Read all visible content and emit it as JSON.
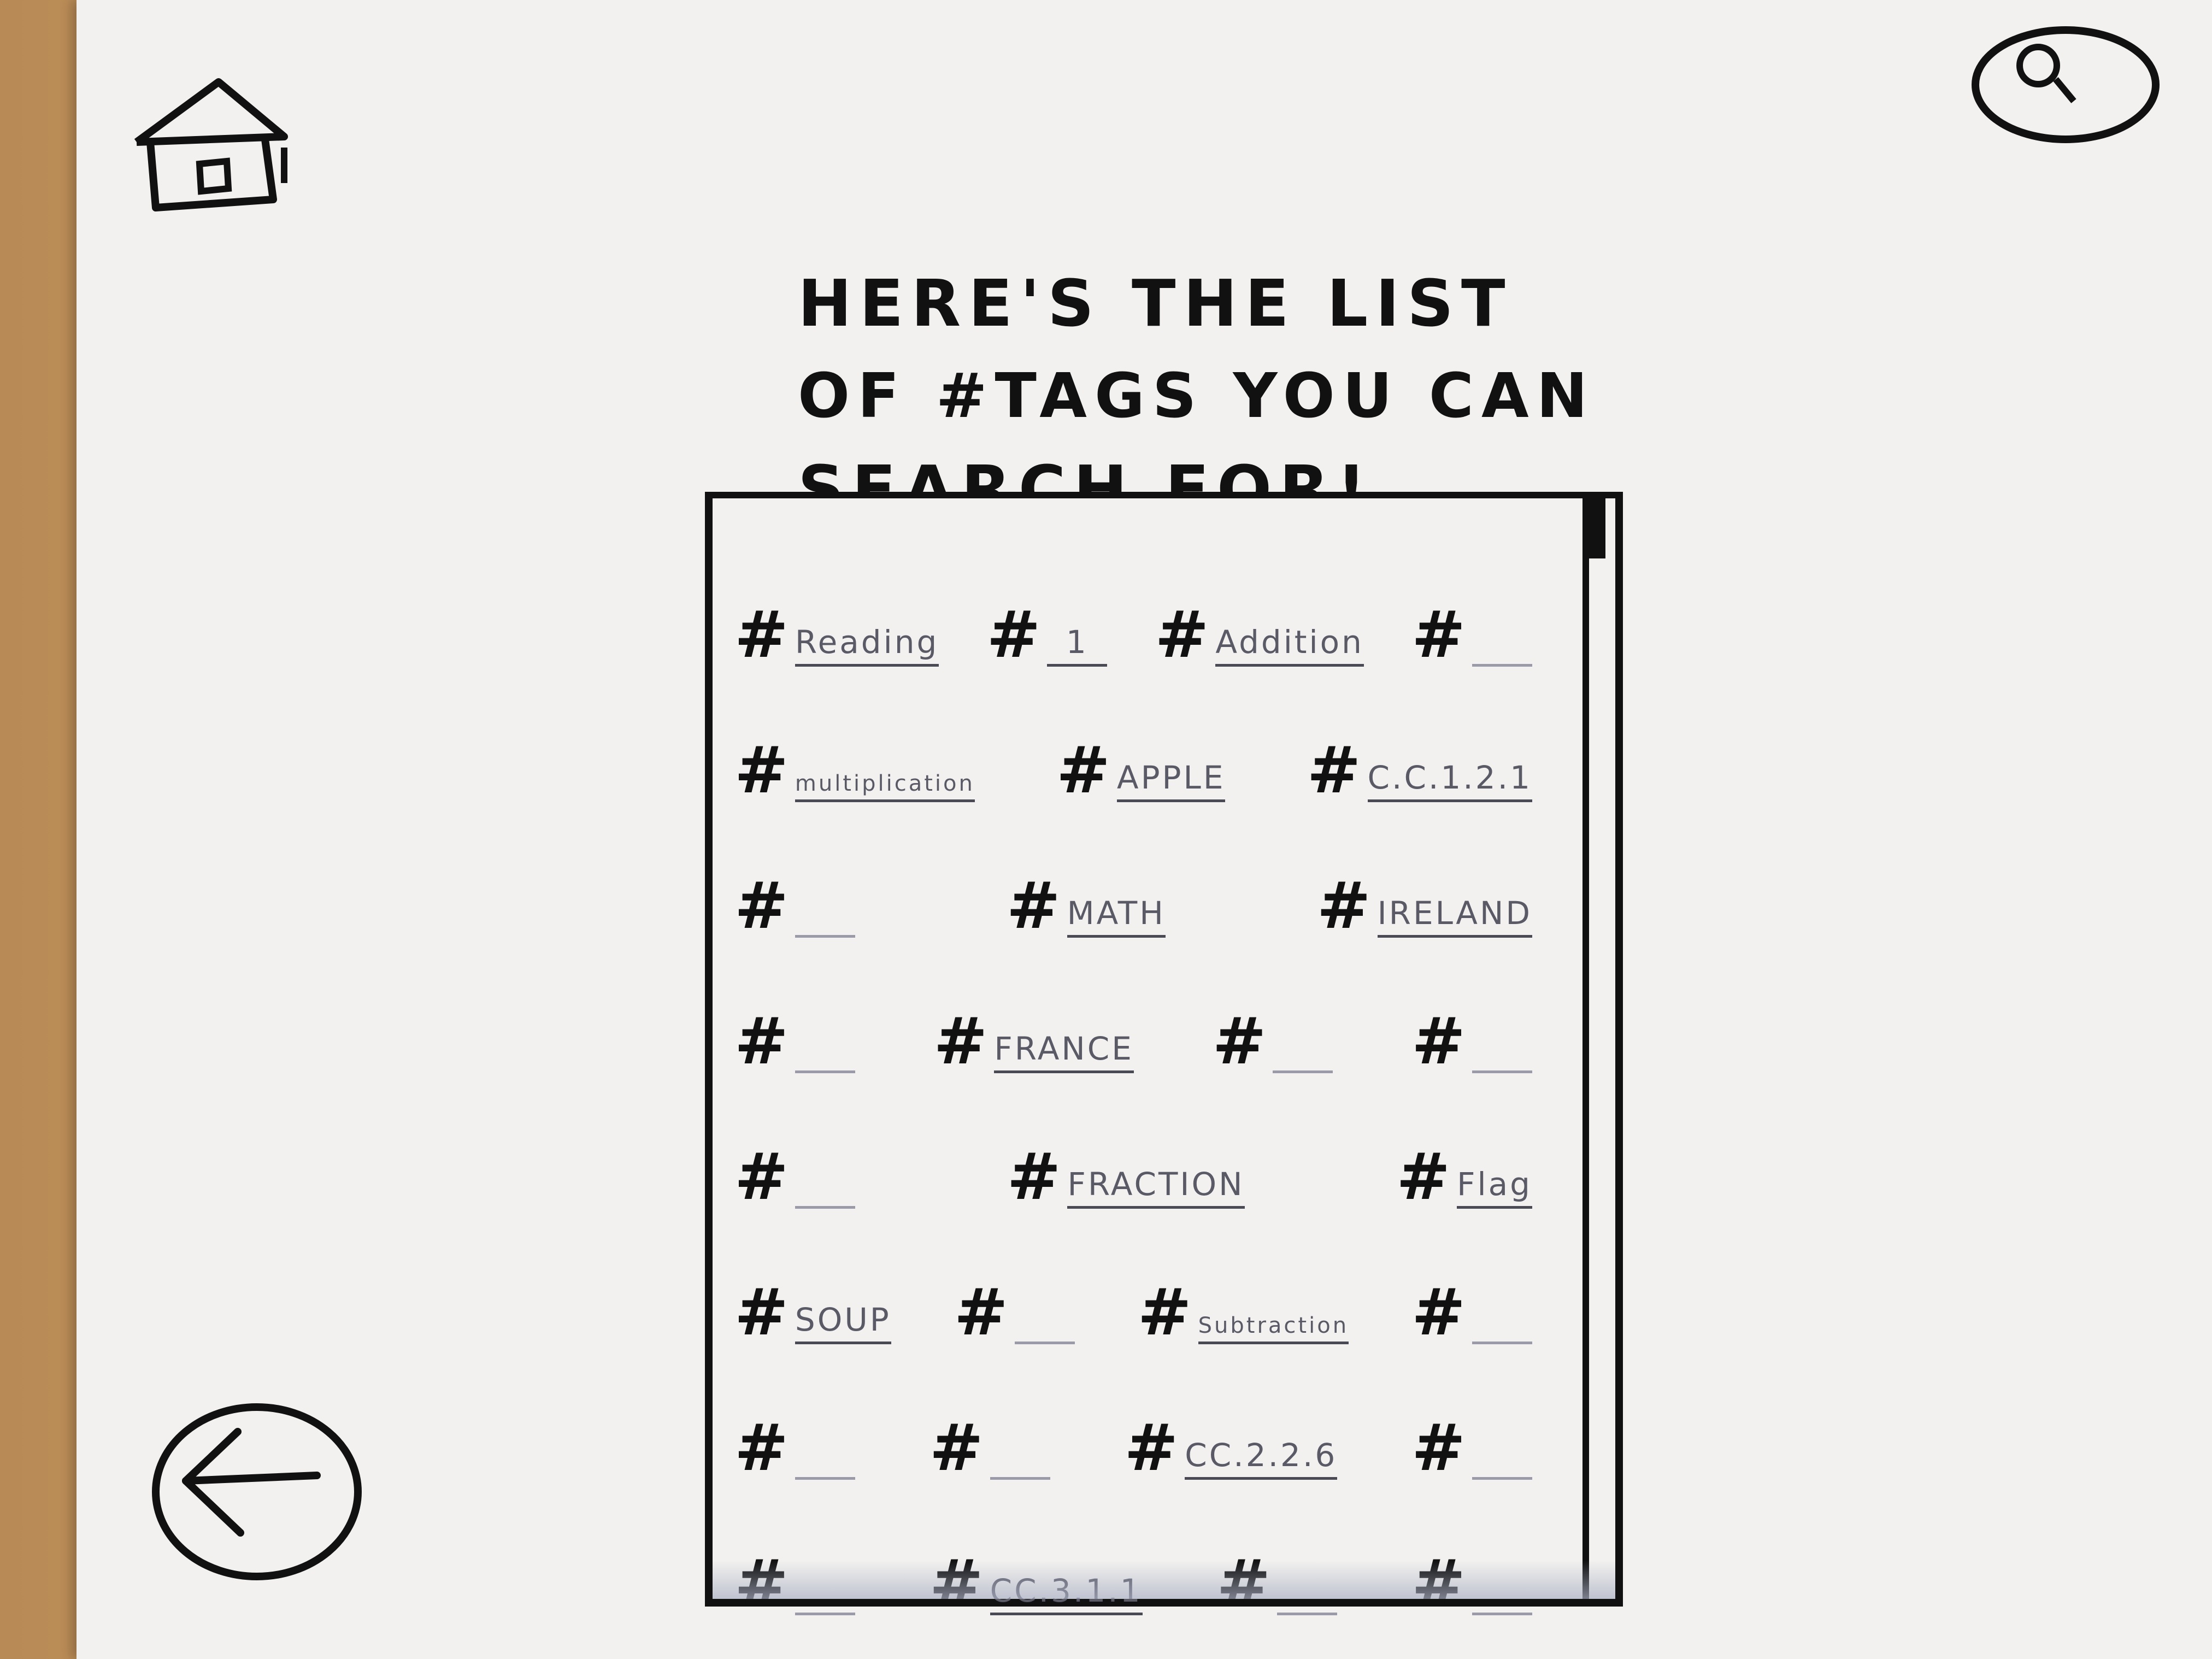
{
  "page": {
    "heading": [
      "Here's The List",
      "Of #Tags You Can",
      "Search For!"
    ]
  },
  "icons": {
    "home": "home-icon",
    "search": "search-icon",
    "back": "back-arrow-icon"
  },
  "tag_rows": [
    [
      {
        "label": "Reading"
      },
      {
        "label": "1"
      },
      {
        "label": "Addition"
      },
      {
        "label": ""
      }
    ],
    [
      {
        "label": "multiplication"
      },
      {
        "label": "APPLE"
      },
      {
        "label": "C.C.1.2.1"
      }
    ],
    [
      {
        "label": ""
      },
      {
        "label": "MATH"
      },
      {
        "label": "IRELAND"
      }
    ],
    [
      {
        "label": ""
      },
      {
        "label": "FRANCE"
      },
      {
        "label": ""
      },
      {
        "label": ""
      }
    ],
    [
      {
        "label": ""
      },
      {
        "label": "FRACTION"
      },
      {
        "label": "Flag"
      }
    ],
    [
      {
        "label": "SOUP"
      },
      {
        "label": ""
      },
      {
        "label": "Subtraction"
      },
      {
        "label": ""
      }
    ],
    [
      {
        "label": ""
      },
      {
        "label": ""
      },
      {
        "label": "CC.2.2.6"
      },
      {
        "label": ""
      }
    ],
    [
      {
        "label": ""
      },
      {
        "label": "CC.3.1.1"
      },
      {
        "label": ""
      },
      {
        "label": ""
      }
    ]
  ],
  "hash_symbol": "#"
}
